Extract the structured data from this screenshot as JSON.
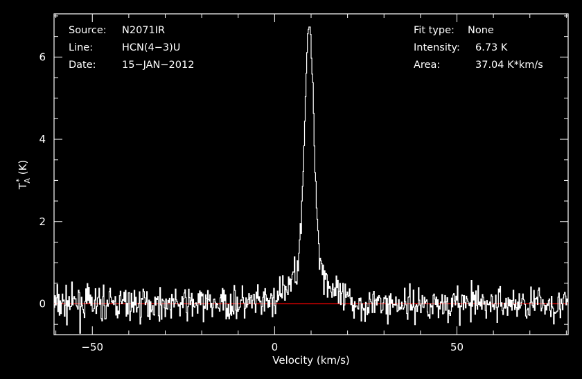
{
  "header_left": {
    "source_label": "Source:",
    "source_value": "N2071IR",
    "line_label": "Line:",
    "line_value": "HCN(4−3)U",
    "date_label": "Date:",
    "date_value": "15−JAN−2012"
  },
  "header_right": {
    "fit_label": "Fit type:",
    "fit_value": "None",
    "intensity_label": "Intensity:",
    "intensity_value": "6.73 K",
    "area_label": "Area:",
    "area_value": "37.04 K*km/s"
  },
  "chart_data": {
    "type": "line",
    "xlabel": "Velocity (km/s)",
    "ylabel": "T*A (K)",
    "xlim": [
      -60.5,
      80.5
    ],
    "ylim": [
      -0.75,
      7.05
    ],
    "x_ticks": [
      -50,
      0,
      50
    ],
    "x_tick_labels": [
      "−50",
      "0",
      "50"
    ],
    "y_ticks": [
      0,
      2,
      4,
      6
    ],
    "y_tick_labels": [
      "0",
      "2",
      "4",
      "6"
    ],
    "baseline": {
      "y": 0,
      "color": "#ff0000"
    },
    "spectrum_color": "#ffffff",
    "background": "#000000",
    "grid": false,
    "series": [
      {
        "x_start": -60.5,
        "x_end": 80.5,
        "points": 700,
        "noise_rms": 0.2,
        "noise_seed": 7,
        "peak_velocity": 9.5,
        "peak_intensity": 6.73,
        "core_fwhm": 2.9,
        "wing_amplitude": 1.1,
        "wing_fwhm": 10.0
      }
    ]
  }
}
